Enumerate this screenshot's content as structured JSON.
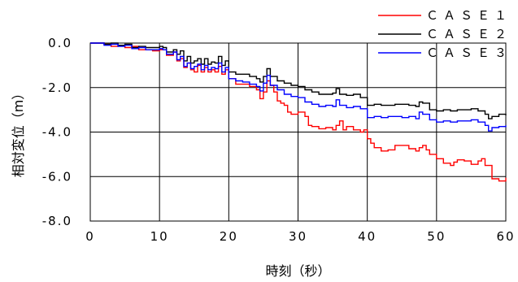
{
  "chart_data": {
    "type": "line",
    "xlabel": "時刻（秒）",
    "ylabel": "相対変位（m）",
    "xlim": [
      0,
      60
    ],
    "ylim": [
      -8,
      0
    ],
    "grid": true,
    "legend_position": "top-right",
    "x_ticks": [
      "0",
      "10",
      "20",
      "30",
      "40",
      "50",
      "60"
    ],
    "y_ticks": [
      "0.0",
      "-2.0",
      "-4.0",
      "-6.0",
      "-8.0"
    ],
    "series": [
      {
        "name": "ＣＡＳＥ１",
        "color": "#ff0000",
        "points": [
          [
            0,
            0
          ],
          [
            1,
            0
          ],
          [
            2,
            -0.05
          ],
          [
            3,
            -0.15
          ],
          [
            4,
            -0.1
          ],
          [
            5,
            -0.2
          ],
          [
            6,
            -0.15
          ],
          [
            7,
            -0.3
          ],
          [
            8,
            -0.3
          ],
          [
            9,
            -0.35
          ],
          [
            10,
            -0.3
          ],
          [
            10.5,
            -0.3
          ],
          [
            11,
            -0.55
          ],
          [
            12,
            -0.4
          ],
          [
            12.5,
            -0.8
          ],
          [
            13,
            -0.7
          ],
          [
            13.5,
            -1.1
          ],
          [
            14,
            -0.9
          ],
          [
            14.5,
            -1.2
          ],
          [
            15,
            -1.3
          ],
          [
            15.5,
            -1.0
          ],
          [
            16,
            -1.3
          ],
          [
            16.5,
            -1.1
          ],
          [
            17,
            -1.3
          ],
          [
            17.5,
            -1.2
          ],
          [
            18,
            -1.3
          ],
          [
            18.5,
            -1.05
          ],
          [
            19,
            -1.4
          ],
          [
            19.5,
            -1.2
          ],
          [
            20,
            -1.6
          ],
          [
            21,
            -1.85
          ],
          [
            22,
            -1.85
          ],
          [
            23,
            -1.95
          ],
          [
            23.5,
            -1.95
          ],
          [
            24,
            -2.1
          ],
          [
            24.5,
            -2.5
          ],
          [
            25,
            -2.2
          ],
          [
            25.5,
            -1.7
          ],
          [
            26,
            -1.9
          ],
          [
            26.5,
            -2.2
          ],
          [
            27,
            -2.6
          ],
          [
            27.5,
            -2.7
          ],
          [
            28,
            -2.8
          ],
          [
            28.5,
            -3.1
          ],
          [
            29,
            -3.2
          ],
          [
            30,
            -3.1
          ],
          [
            31,
            -3.3
          ],
          [
            31.5,
            -3.7
          ],
          [
            32,
            -3.75
          ],
          [
            33,
            -3.85
          ],
          [
            34,
            -3.8
          ],
          [
            35,
            -3.9
          ],
          [
            35.5,
            -3.7
          ],
          [
            36,
            -3.5
          ],
          [
            36.5,
            -3.9
          ],
          [
            37,
            -3.75
          ],
          [
            38,
            -3.9
          ],
          [
            39,
            -4.0
          ],
          [
            39.5,
            -3.9
          ],
          [
            40,
            -4.3
          ],
          [
            40.5,
            -4.5
          ],
          [
            41,
            -4.7
          ],
          [
            42,
            -4.85
          ],
          [
            43,
            -4.8
          ],
          [
            44,
            -4.6
          ],
          [
            45,
            -4.6
          ],
          [
            46,
            -4.75
          ],
          [
            47,
            -4.85
          ],
          [
            47.5,
            -4.7
          ],
          [
            48,
            -4.6
          ],
          [
            48.5,
            -4.8
          ],
          [
            49,
            -5.0
          ],
          [
            50,
            -5.2
          ],
          [
            51,
            -5.4
          ],
          [
            52,
            -5.5
          ],
          [
            52.5,
            -5.35
          ],
          [
            53,
            -5.25
          ],
          [
            54,
            -5.3
          ],
          [
            55,
            -5.45
          ],
          [
            56,
            -5.3
          ],
          [
            56.5,
            -5.2
          ],
          [
            57,
            -5.5
          ],
          [
            58,
            -6.1
          ],
          [
            59,
            -6.2
          ],
          [
            60,
            -6.05
          ]
        ]
      },
      {
        "name": "ＣＡＳＥ２",
        "color": "#000000",
        "points": [
          [
            0,
            0
          ],
          [
            1,
            0
          ],
          [
            2,
            -0.05
          ],
          [
            3,
            0
          ],
          [
            4,
            -0.1
          ],
          [
            5,
            -0.05
          ],
          [
            6,
            -0.2
          ],
          [
            7,
            -0.15
          ],
          [
            8,
            -0.2
          ],
          [
            9,
            -0.2
          ],
          [
            10,
            -0.15
          ],
          [
            10.5,
            -0.2
          ],
          [
            11,
            -0.4
          ],
          [
            12,
            -0.3
          ],
          [
            12.5,
            -0.5
          ],
          [
            13,
            -0.35
          ],
          [
            13.5,
            -0.8
          ],
          [
            14,
            -0.6
          ],
          [
            14.5,
            -0.9
          ],
          [
            15,
            -0.8
          ],
          [
            15.5,
            -0.7
          ],
          [
            16,
            -0.95
          ],
          [
            16.5,
            -0.7
          ],
          [
            17,
            -0.95
          ],
          [
            17.5,
            -0.85
          ],
          [
            18,
            -0.9
          ],
          [
            18.5,
            -0.6
          ],
          [
            19,
            -1.0
          ],
          [
            19.5,
            -0.8
          ],
          [
            20,
            -1.3
          ],
          [
            21,
            -1.4
          ],
          [
            22,
            -1.4
          ],
          [
            23,
            -1.5
          ],
          [
            24,
            -1.6
          ],
          [
            24.5,
            -1.75
          ],
          [
            25,
            -1.5
          ],
          [
            25.5,
            -1.15
          ],
          [
            26,
            -1.5
          ],
          [
            27,
            -1.7
          ],
          [
            28,
            -1.8
          ],
          [
            29,
            -1.9
          ],
          [
            30,
            -1.95
          ],
          [
            31,
            -2.1
          ],
          [
            32,
            -2.2
          ],
          [
            33,
            -2.3
          ],
          [
            34,
            -2.3
          ],
          [
            35,
            -2.25
          ],
          [
            35.5,
            -2.05
          ],
          [
            36,
            -2.3
          ],
          [
            37,
            -2.35
          ],
          [
            38,
            -2.3
          ],
          [
            39,
            -2.45
          ],
          [
            40,
            -2.8
          ],
          [
            41,
            -2.75
          ],
          [
            42,
            -2.8
          ],
          [
            43,
            -2.8
          ],
          [
            44,
            -2.75
          ],
          [
            45,
            -2.75
          ],
          [
            46,
            -2.8
          ],
          [
            47,
            -2.85
          ],
          [
            47.5,
            -2.65
          ],
          [
            48,
            -2.7
          ],
          [
            49,
            -3.0
          ],
          [
            50,
            -3.05
          ],
          [
            51,
            -3.0
          ],
          [
            52,
            -3.05
          ],
          [
            53,
            -3.0
          ],
          [
            54,
            -3.0
          ],
          [
            55,
            -2.95
          ],
          [
            56,
            -3.05
          ],
          [
            57,
            -3.2
          ],
          [
            57.5,
            -3.4
          ],
          [
            58,
            -3.3
          ],
          [
            59,
            -3.2
          ],
          [
            60,
            -3.25
          ]
        ]
      },
      {
        "name": "ＣＡＳＥ３",
        "color": "#0000ff",
        "points": [
          [
            0,
            0
          ],
          [
            1,
            0
          ],
          [
            2,
            -0.1
          ],
          [
            3,
            -0.05
          ],
          [
            4,
            -0.15
          ],
          [
            5,
            -0.1
          ],
          [
            6,
            -0.25
          ],
          [
            7,
            -0.2
          ],
          [
            8,
            -0.3
          ],
          [
            9,
            -0.3
          ],
          [
            10,
            -0.25
          ],
          [
            10.5,
            -0.3
          ],
          [
            11,
            -0.5
          ],
          [
            12,
            -0.4
          ],
          [
            12.5,
            -0.75
          ],
          [
            13,
            -0.6
          ],
          [
            13.5,
            -1.05
          ],
          [
            14,
            -0.9
          ],
          [
            14.5,
            -1.15
          ],
          [
            15,
            -1.05
          ],
          [
            15.5,
            -0.95
          ],
          [
            16,
            -1.2
          ],
          [
            16.5,
            -1.0
          ],
          [
            17,
            -1.2
          ],
          [
            17.5,
            -1.1
          ],
          [
            18,
            -1.15
          ],
          [
            18.5,
            -0.9
          ],
          [
            19,
            -1.3
          ],
          [
            19.5,
            -1.1
          ],
          [
            20,
            -1.6
          ],
          [
            21,
            -1.7
          ],
          [
            22,
            -1.75
          ],
          [
            23,
            -1.85
          ],
          [
            24,
            -1.95
          ],
          [
            24.5,
            -2.15
          ],
          [
            25,
            -1.8
          ],
          [
            25.5,
            -1.45
          ],
          [
            26,
            -1.9
          ],
          [
            27,
            -2.1
          ],
          [
            28,
            -2.3
          ],
          [
            29,
            -2.4
          ],
          [
            30,
            -2.45
          ],
          [
            31,
            -2.65
          ],
          [
            32,
            -2.75
          ],
          [
            33,
            -2.85
          ],
          [
            34,
            -2.8
          ],
          [
            35,
            -2.85
          ],
          [
            35.5,
            -2.55
          ],
          [
            36,
            -2.8
          ],
          [
            37,
            -2.9
          ],
          [
            38,
            -2.85
          ],
          [
            39,
            -2.95
          ],
          [
            40,
            -3.35
          ],
          [
            41,
            -3.3
          ],
          [
            42,
            -3.35
          ],
          [
            43,
            -3.3
          ],
          [
            44,
            -3.3
          ],
          [
            45,
            -3.35
          ],
          [
            46,
            -3.3
          ],
          [
            47,
            -3.4
          ],
          [
            47.5,
            -3.1
          ],
          [
            48,
            -3.2
          ],
          [
            49,
            -3.45
          ],
          [
            50,
            -3.55
          ],
          [
            51,
            -3.5
          ],
          [
            52,
            -3.55
          ],
          [
            53,
            -3.5
          ],
          [
            54,
            -3.5
          ],
          [
            55,
            -3.45
          ],
          [
            56,
            -3.55
          ],
          [
            57,
            -3.7
          ],
          [
            57.5,
            -3.95
          ],
          [
            58,
            -3.8
          ],
          [
            59,
            -3.75
          ],
          [
            60,
            -3.7
          ]
        ]
      }
    ]
  }
}
